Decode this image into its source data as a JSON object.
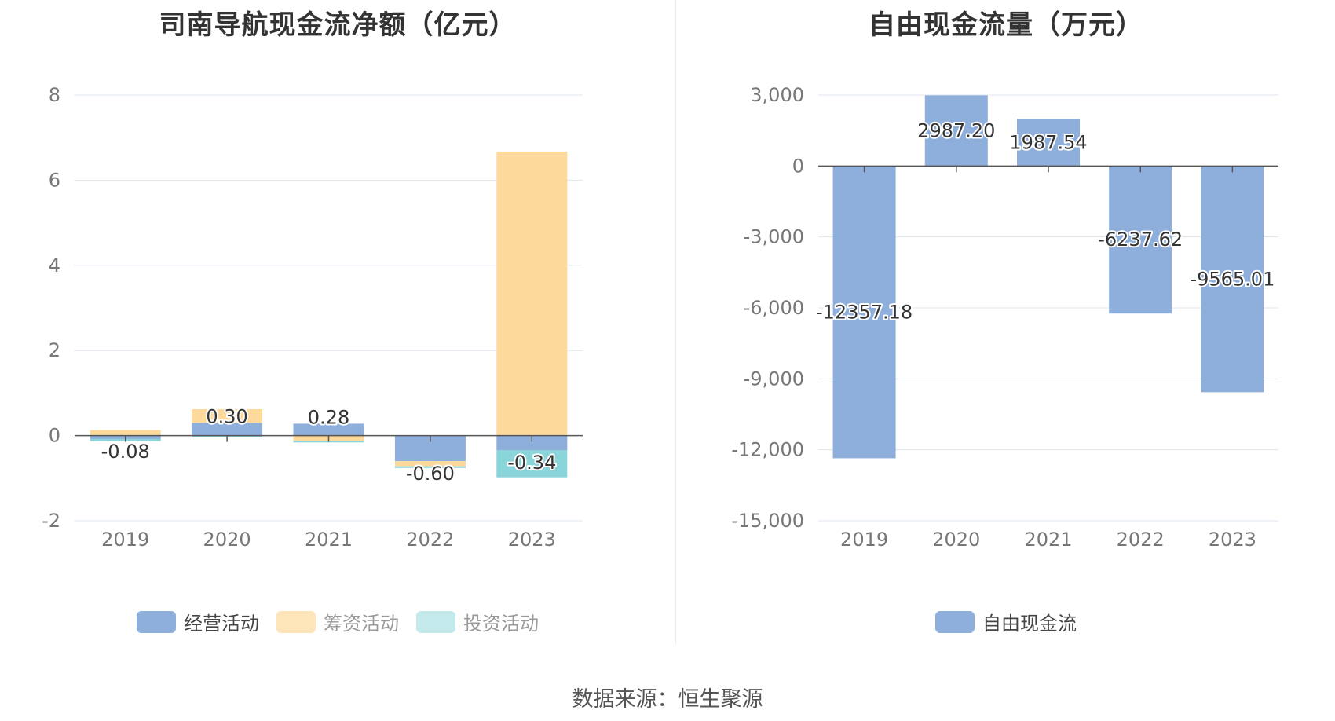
{
  "charts": [
    {
      "title": "司南导航现金流净额（亿元）",
      "chart_data": {
        "type": "bar",
        "stacked": true,
        "categories": [
          "2019",
          "2020",
          "2021",
          "2022",
          "2023"
        ],
        "series": [
          {
            "name": "经营活动",
            "color": "#8eaedc",
            "values": [
              -0.08,
              0.3,
              0.28,
              -0.6,
              -0.34
            ]
          },
          {
            "name": "筹资活动",
            "color": "#fdd99b",
            "values": [
              0.13,
              0.32,
              -0.12,
              -0.12,
              6.67
            ]
          },
          {
            "name": "投资活动",
            "color": "#8ad5d9",
            "values": [
              -0.05,
              -0.04,
              -0.04,
              -0.04,
              -0.64
            ]
          }
        ],
        "data_labels": [
          "-0.08",
          "0.30",
          "0.28",
          "-0.60",
          "-0.34"
        ],
        "yticks": [
          "8",
          "6",
          "4",
          "2",
          "0",
          "-2"
        ],
        "ylim": [
          -2,
          8
        ],
        "grid": true,
        "legend": "bottom",
        "legend_colors": [
          "#8eaedc",
          "#fde4b9",
          "#c3e9eb"
        ],
        "legend_text_colors": [
          "#444444",
          "#999999",
          "#999999"
        ]
      }
    },
    {
      "title": "自由现金流量（万元）",
      "chart_data": {
        "type": "bar",
        "categories": [
          "2019",
          "2020",
          "2021",
          "2022",
          "2023"
        ],
        "series": [
          {
            "name": "自由现金流",
            "color": "#8eaedc",
            "values": [
              -12357.18,
              2987.2,
              1987.54,
              -6237.62,
              -9565.01
            ]
          }
        ],
        "data_labels": [
          "-12357.18",
          "2987.20",
          "1987.54",
          "-6237.62",
          "-9565.01"
        ],
        "yticks": [
          "3,000",
          "0",
          "-3,000",
          "-6,000",
          "-9,000",
          "-12,000",
          "-15,000"
        ],
        "ylim": [
          -15000,
          3000
        ],
        "grid": true,
        "legend": "bottom",
        "legend_colors": [
          "#8eaedc"
        ],
        "legend_text_colors": [
          "#444444"
        ]
      }
    }
  ],
  "source": "数据来源：恒生聚源"
}
